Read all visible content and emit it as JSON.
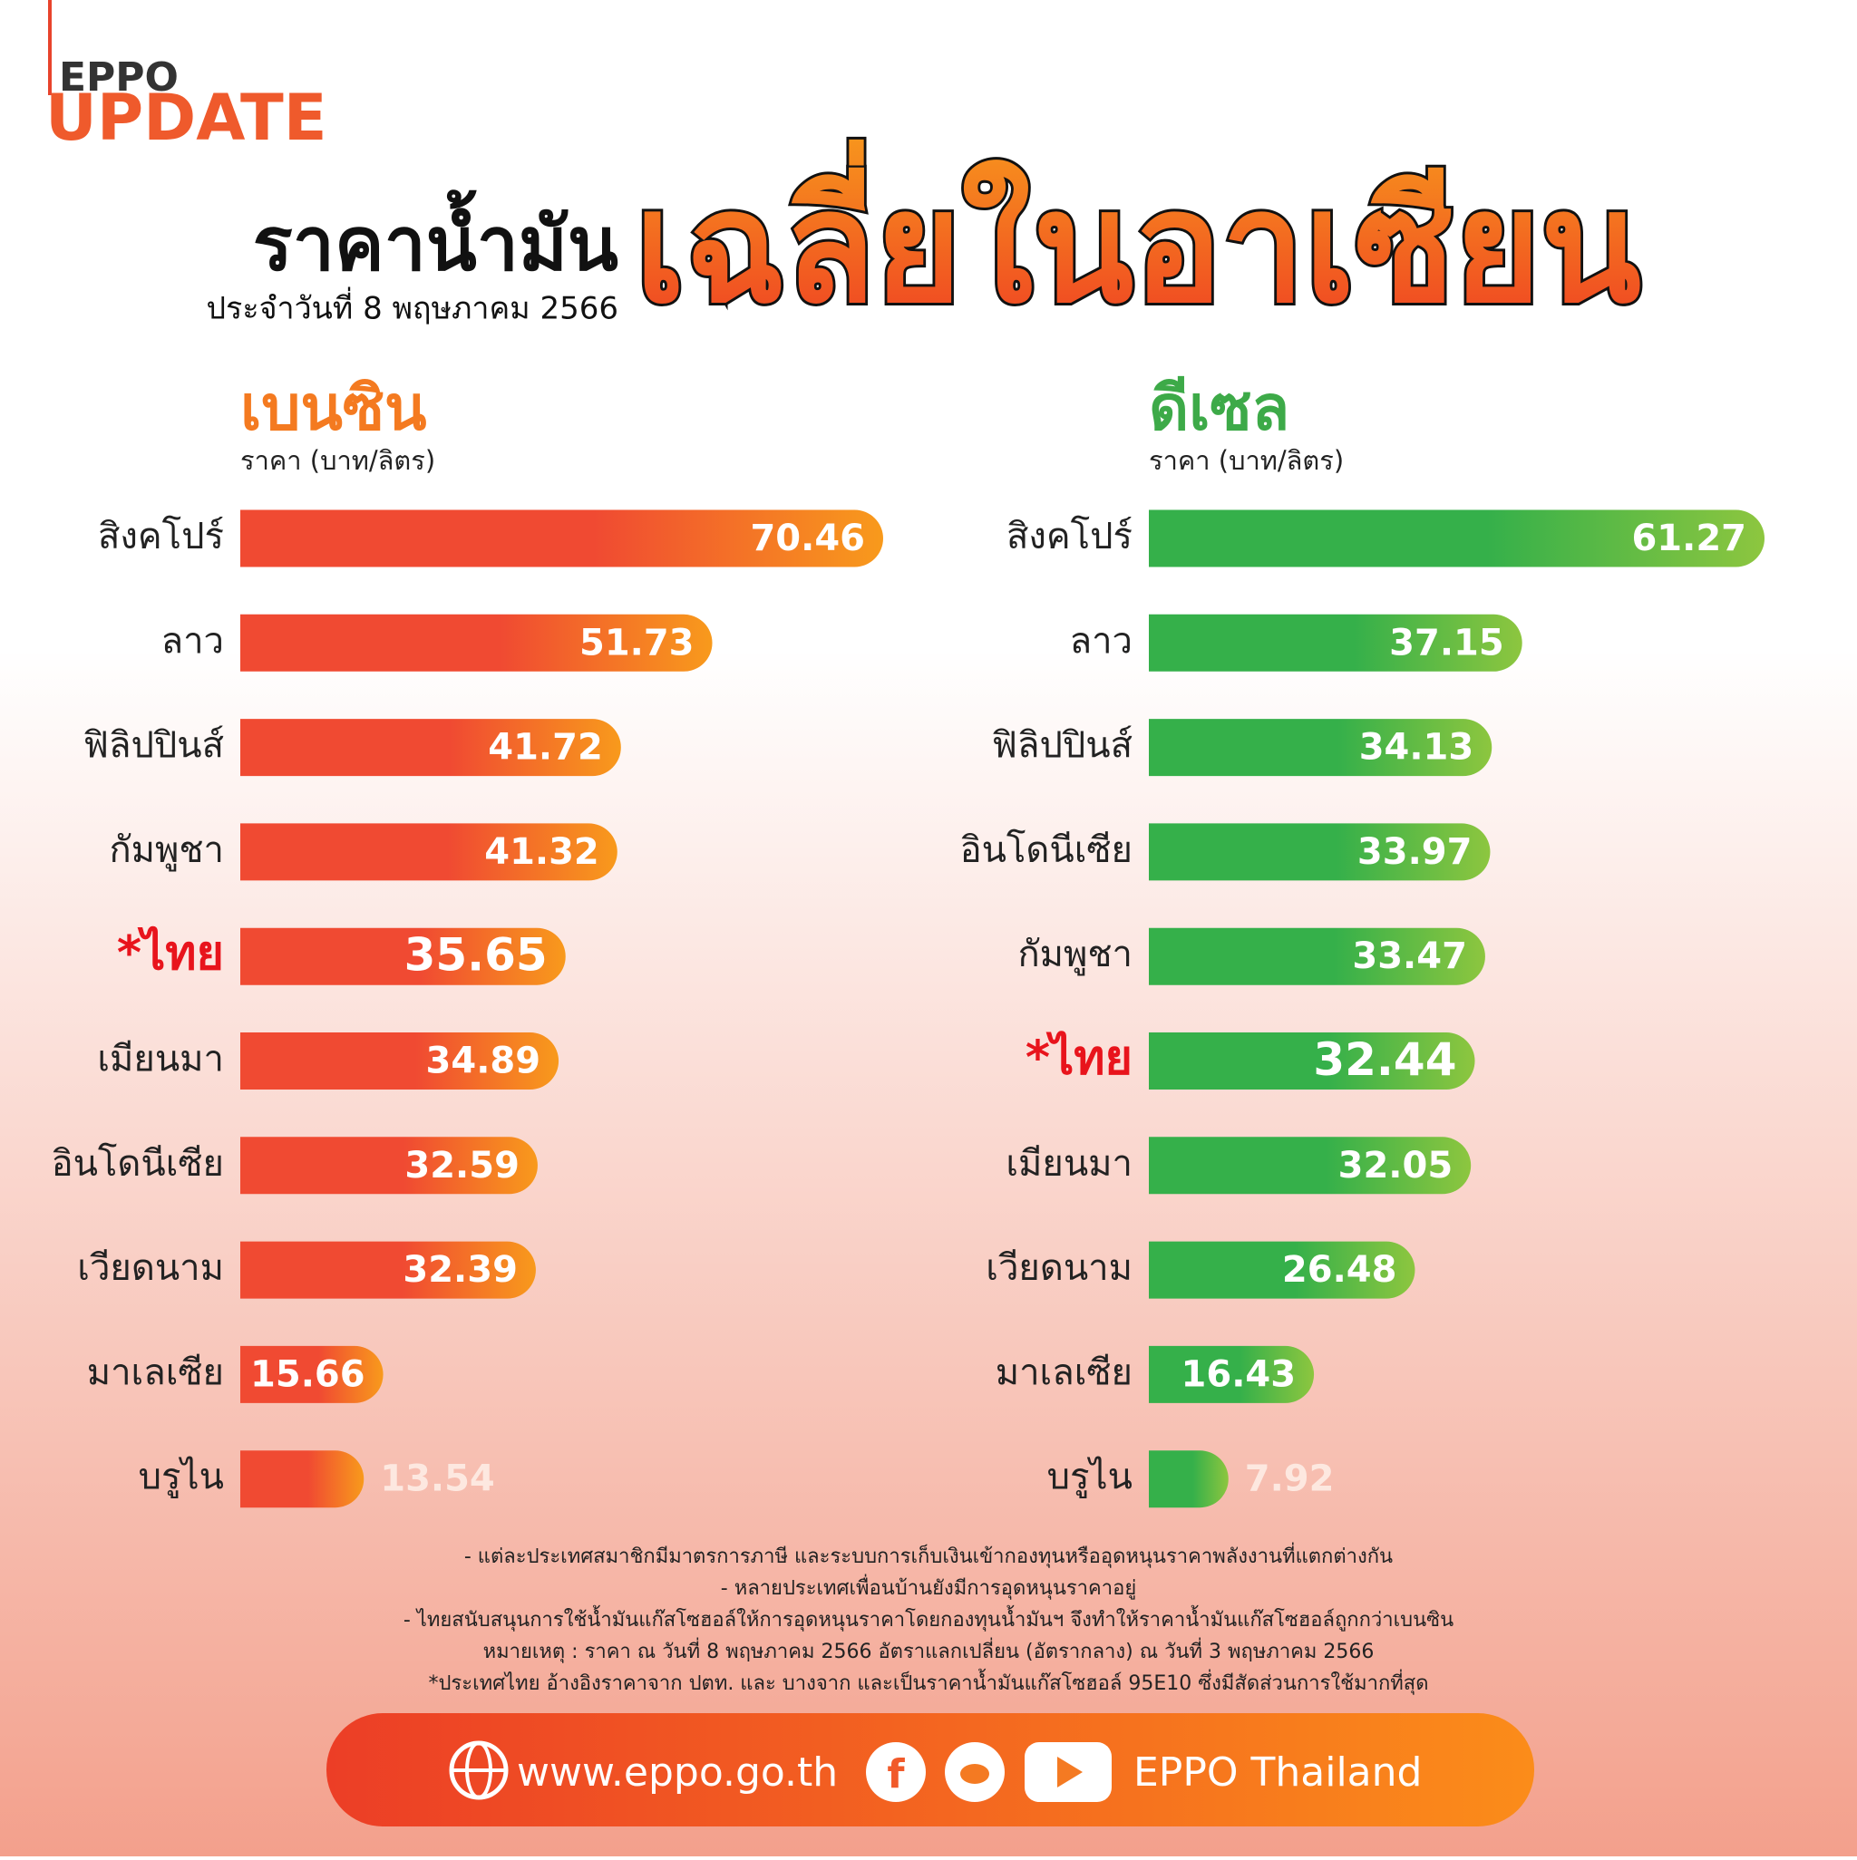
{
  "header": {
    "brand": "EPPO",
    "brand_sub": "UPDATE",
    "title": "ราคาน้ำมัน",
    "title_highlight": "เฉลี่ยในอาเซียน",
    "date": "ประจำวันที่ 8 พฤษภาคม 2566"
  },
  "chart_data": [
    {
      "type": "bar",
      "orientation": "horizontal",
      "title": "เบนซิน",
      "subtitle": "ราคา (บาท/ลิตร)",
      "title_color": "#f47a20",
      "categories": [
        "สิงคโปร์",
        "ลาว",
        "ฟิลิปปินส์",
        "กัมพูชา",
        "*ไทย",
        "เมียนมา",
        "อินโดนีเซีย",
        "เวียดนาม",
        "มาเลเซีย",
        "บรูไน"
      ],
      "values": [
        70.46,
        51.73,
        41.72,
        41.32,
        35.65,
        34.89,
        32.59,
        32.39,
        15.66,
        13.54
      ],
      "colors": [
        "#f04a32",
        "#f89a1c"
      ]
    },
    {
      "type": "bar",
      "orientation": "horizontal",
      "title": "ดีเซล",
      "subtitle": "ราคา (บาท/ลิตร)",
      "title_color": "#3daa48",
      "categories": [
        "สิงคโปร์",
        "ลาว",
        "ฟิลิปปินส์",
        "อินโดนีเซีย",
        "กัมพูชา",
        "*ไทย",
        "เมียนมา",
        "เวียดนาม",
        "มาเลเซีย",
        "บรูไน"
      ],
      "values": [
        61.27,
        37.15,
        34.13,
        33.97,
        33.47,
        32.44,
        32.05,
        26.48,
        16.43,
        7.92
      ],
      "colors": [
        "#35b04a",
        "#8dc63f"
      ]
    }
  ],
  "notes": [
    "- แต่ละประเทศสมาชิกมีมาตรการภาษี และระบบการเก็บเงินเข้ากองทุนหรืออุดหนุนราคาพลังงานที่แตกต่างกัน",
    "- หลายประเทศเพื่อนบ้านยังมีการอุดหนุนราคาอยู่",
    "- ไทยสนับสนุนการใช้น้ำมันแก๊สโซฮอล์ให้การอุดหนุนราคาโดยกองทุนน้ำมันฯ จึงทำให้ราคาน้ำมันแก๊สโซฮอล์ถูกกว่าเบนซิน",
    "หมายเหตุ : ราคา ณ วันที่ 8 พฤษภาคม 2566 อัตราแลกเปลี่ยน (อัตรากลาง) ณ วันที่ 3 พฤษภาคม 2566",
    "*ประเทศไทย อ้างอิงราคาจาก ปตท. และ บางจาก และเป็นราคาน้ำมันแก๊สโซฮอล์ 95E10 ซึ่งมีสัดส่วนการใช้มากที่สุด"
  ],
  "footer": {
    "website": "www.eppo.go.th",
    "social": "EPPO Thailand"
  }
}
